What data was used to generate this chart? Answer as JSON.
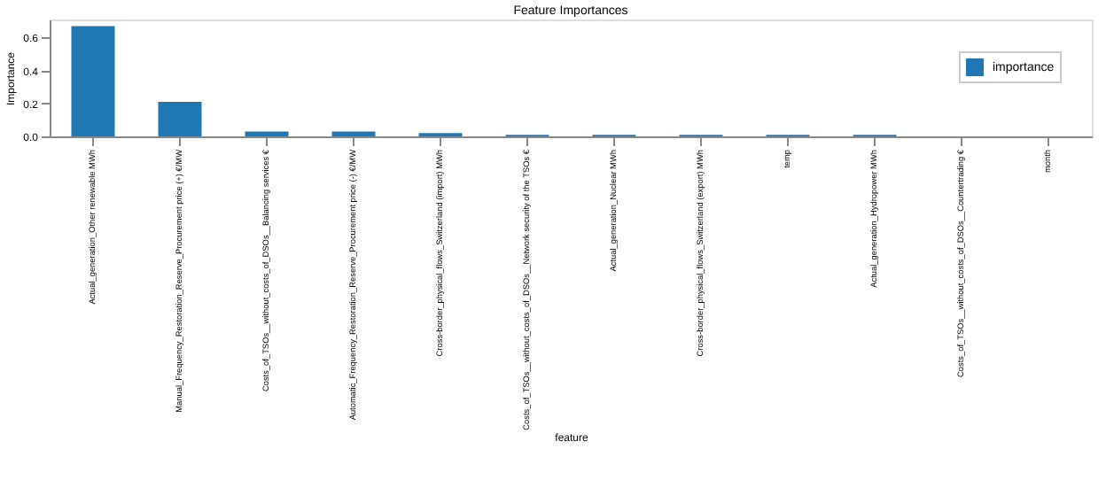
{
  "chart_data": {
    "type": "bar",
    "title": "Feature Importances",
    "xlabel": "feature",
    "ylabel": "Importance",
    "categories": [
      "Actual_generation_Other renewable MWh",
      "Manual_Frequency_Restoration_Reserve_Procurement price (+) €/MW",
      "Costs_of_TSOs__without_costs_of_DSOs__Balancing services €",
      "Automatic_Frequency_Restoration_Reserve_Procurement price (-) €/MW",
      "Cross-border_physical_flows_Switzerland (import) MWh",
      "Costs_of_TSOs__without_costs_of_DSOs__Network security of the TSOs €",
      "Actual_generation_Nuclear MWh",
      "Cross-border_physical_flows_Switzerland (export) MWh",
      "temp",
      "Actual_generation_Hydropower MWh",
      "Costs_of_TSOs__without_costs_of_DSOs__Countertrading €",
      "month"
    ],
    "series": [
      {
        "name": "importance",
        "color": "#1f77b4",
        "values": [
          0.67,
          0.21,
          0.03,
          0.03,
          0.02,
          0.01,
          0.01,
          0.01,
          0.01,
          0.01,
          0.0,
          0.0
        ]
      }
    ],
    "ylim": [
      0,
      0.71
    ],
    "yticks": [
      {
        "value": 0,
        "label": "0.0"
      },
      {
        "value": 0.2,
        "label": "0.2"
      },
      {
        "value": 0.4,
        "label": "0.4"
      },
      {
        "value": 0.6,
        "label": "0.6"
      }
    ],
    "grid": false,
    "legend": "top right"
  }
}
